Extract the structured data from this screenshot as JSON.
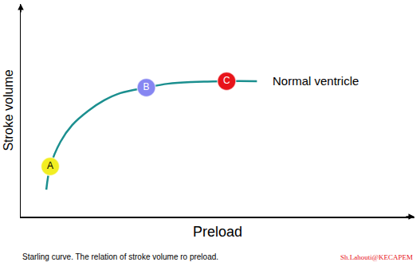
{
  "chart_data": {
    "type": "line",
    "x_label": "Preload",
    "y_label": "Stroke volume",
    "caption": "Starling curve. The relation of stroke volume ro preload.",
    "credit": "Sh.Lahouti@KECAPEM",
    "xlim": [
      0,
      100
    ],
    "ylim": [
      0,
      100
    ],
    "xticks": [],
    "yticks": [],
    "tick_labels": false,
    "grid": false,
    "legend": false,
    "series": [
      {
        "name": "Normal ventricle",
        "type": "line",
        "color": "#1b8f8f",
        "line_style": "solid",
        "x": [
          6.5,
          7.5,
          10.1,
          13.1,
          17.2,
          21.2,
          25.3,
          31.9,
          37.4,
          43.4,
          52.3,
          60.0
        ],
        "values": [
          12.7,
          23.6,
          35.2,
          43.1,
          49.8,
          54.7,
          58.1,
          60.7,
          62.5,
          63.3,
          63.7,
          63.7
        ]
      },
      {
        "type": "scatter",
        "marker": "circle",
        "labels": [
          "A",
          "B",
          "C"
        ],
        "x": [
          7.5,
          31.9,
          52.3
        ],
        "values": [
          23.6,
          60.7,
          63.7
        ],
        "colors": [
          "#f2ee22",
          "#8686f2",
          "#e8141a"
        ],
        "label_colors": [
          "#000000",
          "#ffffff",
          "#ffffff"
        ]
      }
    ]
  }
}
